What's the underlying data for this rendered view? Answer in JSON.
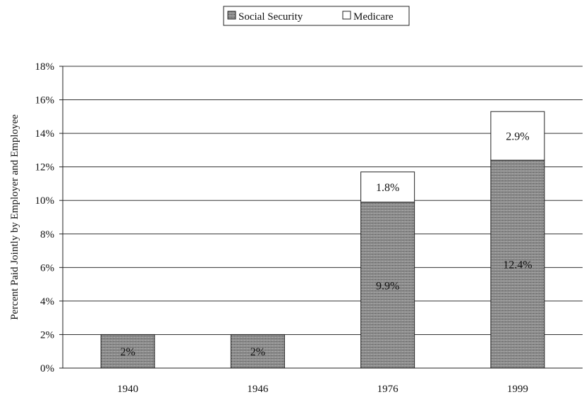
{
  "chart_data": {
    "type": "bar",
    "stacked": true,
    "categories": [
      "1940",
      "1946",
      "1976",
      "1999"
    ],
    "series": [
      {
        "name": "Social Security",
        "values": [
          2,
          2,
          9.9,
          12.4
        ],
        "color": "#8a8a8a",
        "labels": [
          "2%",
          "2%",
          "9.9%",
          "12.4%"
        ]
      },
      {
        "name": "Medicare",
        "values": [
          0,
          0,
          1.8,
          2.9
        ],
        "color": "#ffffff",
        "labels": [
          "",
          "",
          "1.8%",
          "2.9%"
        ]
      }
    ],
    "title": "",
    "xlabel": "",
    "ylabel": "Percent Paid Jointly by Employer and Employee",
    "ylim": [
      0,
      18
    ],
    "yticks": [
      "0%",
      "2%",
      "4%",
      "6%",
      "8%",
      "10%",
      "12%",
      "14%",
      "16%",
      "18%"
    ],
    "grid": true,
    "legend_position": "top-center"
  }
}
